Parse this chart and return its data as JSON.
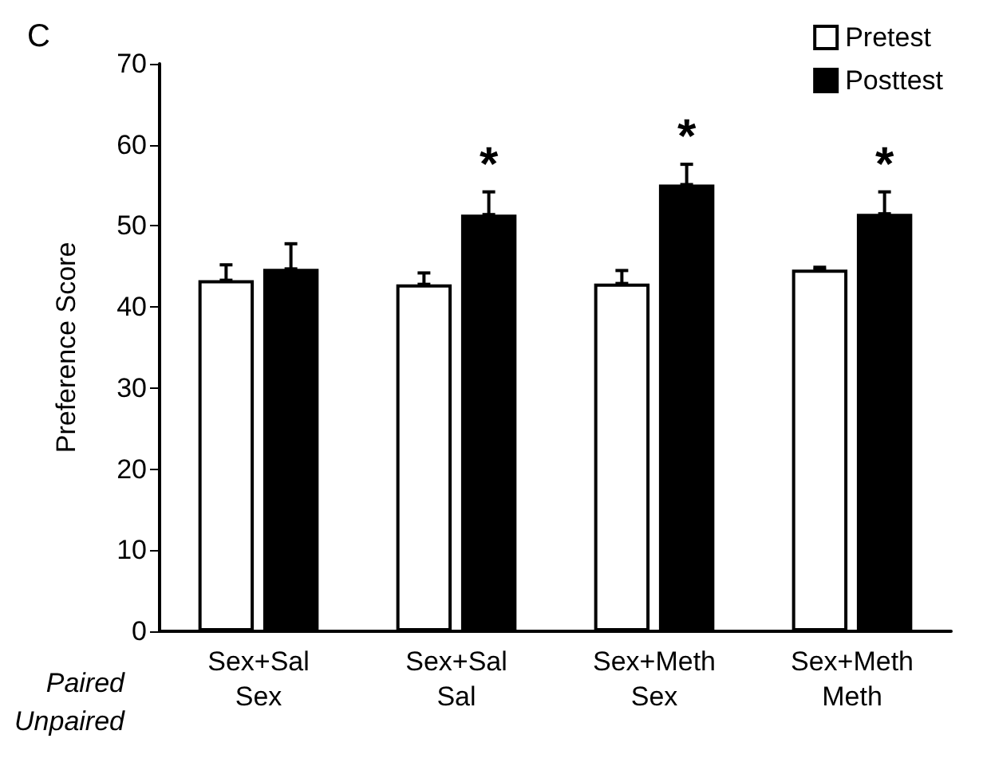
{
  "chart_data": {
    "type": "bar",
    "title": "C",
    "ylabel": "Preference Score",
    "categories": [
      "Sex+Sal\nSex",
      "Sex+Sal\nSal",
      "Sex+Meth\nSex",
      "Sex+Meth\nMeth"
    ],
    "series": [
      {
        "name": "Pretest",
        "color": "#ffffff",
        "values": [
          43.3,
          42.8,
          42.9,
          44.6
        ],
        "errors": [
          [
            43.3,
            45.2
          ],
          [
            42.8,
            44.2
          ],
          [
            42.9,
            44.5
          ],
          [
            44.6,
            44.9
          ]
        ]
      },
      {
        "name": "Posttest",
        "color": "#000000",
        "values": [
          44.7,
          51.4,
          55.1,
          51.5
        ],
        "errors": [
          [
            44.7,
            47.8
          ],
          [
            51.4,
            54.2
          ],
          [
            55.1,
            57.6
          ],
          [
            51.5,
            54.2
          ]
        ]
      }
    ],
    "ylim": [
      0,
      70
    ],
    "yticks": [
      0,
      10,
      20,
      30,
      40,
      50,
      60,
      70
    ],
    "grid": false,
    "legend": "top right",
    "annotations": [
      "Paired",
      "Unpaired",
      "*",
      "*",
      "*"
    ]
  }
}
